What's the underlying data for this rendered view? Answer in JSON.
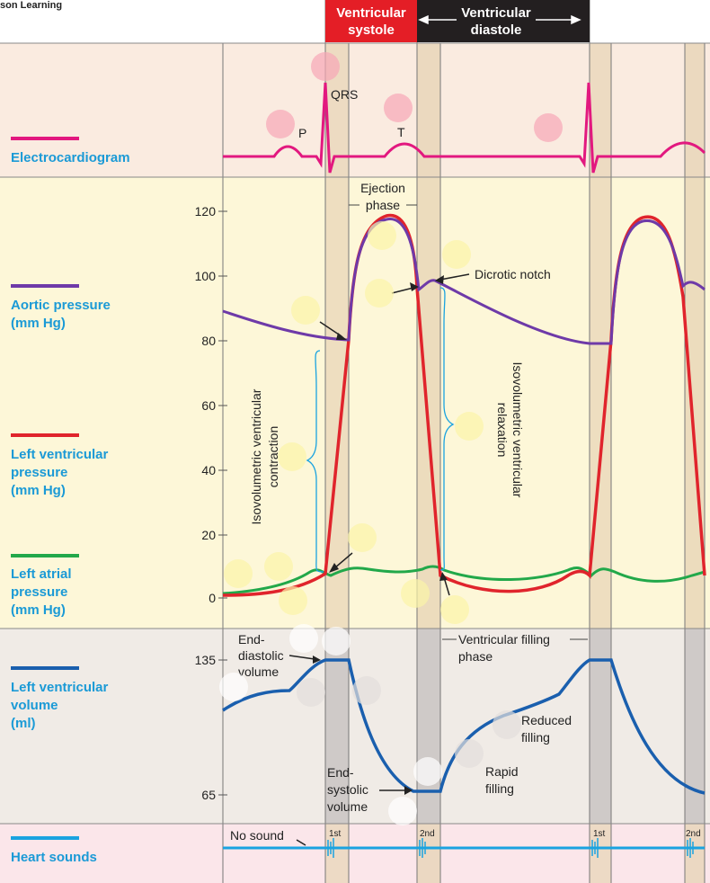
{
  "credit": "son Learning",
  "phases": {
    "systole": [
      "Ventricular",
      "systole"
    ],
    "diastole": [
      "Ventricular",
      "diastole"
    ]
  },
  "colors": {
    "ecg": "#e2187f",
    "aortic": "#6e3aa8",
    "lv": "#e0242c",
    "atrial": "#22a84a",
    "volume": "#1a5fae",
    "sounds": "#1aa3e0",
    "label_blue": "#1b9ad6"
  },
  "rows": {
    "ecg": {
      "label": [
        "Electrocardiogram"
      ]
    },
    "aortic": {
      "label": [
        "Aortic pressure",
        "(mm Hg)"
      ]
    },
    "lv": {
      "label": [
        "Left ventricular",
        "pressure",
        "(mm Hg)"
      ]
    },
    "atrial": {
      "label": [
        "Left atrial",
        "pressure",
        "(mm Hg)"
      ]
    },
    "volume": {
      "label": [
        "Left ventricular",
        "volume",
        "(ml)"
      ]
    },
    "sounds": {
      "label": [
        "Heart sounds"
      ]
    }
  },
  "axes": {
    "pressure_ticks": [
      "120",
      "100",
      "80",
      "60",
      "40",
      "20",
      "0"
    ],
    "volume_ticks": [
      "135",
      "65"
    ]
  },
  "ecg_waves": {
    "p": "P",
    "qrs": "QRS",
    "t": "T"
  },
  "annotations": {
    "ejection": [
      "Ejection",
      "phase"
    ],
    "dicrotic": "Dicrotic notch",
    "isovol_contraction": [
      "Isovolumetric ventricular",
      "contraction"
    ],
    "isovol_relaxation": [
      "Isovolumetric ventricular",
      "relaxation"
    ],
    "edv": [
      "End-",
      "diastolic",
      "volume"
    ],
    "esv": [
      "End-",
      "systolic",
      "volume"
    ],
    "filling_phase": [
      "Ventricular filling",
      "phase"
    ],
    "reduced_filling": [
      "Reduced",
      "filling"
    ],
    "rapid_filling": [
      "Rapid",
      "filling"
    ],
    "no_sound": "No sound"
  },
  "sounds": {
    "first": "1st",
    "second": "2nd",
    "first_b": "1st",
    "second_b": "2nd"
  }
}
